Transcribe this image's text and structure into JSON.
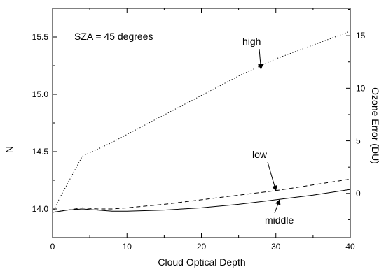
{
  "chart_data": {
    "type": "line",
    "annotation": "SZA = 45 degrees",
    "xlabel": "Cloud Optical Depth",
    "ylabel": "N",
    "y2label": "Ozone Error (DU)",
    "xlim": [
      0,
      40
    ],
    "ylim": [
      13.75,
      15.75
    ],
    "y2lim": [
      -4.2,
      17.6
    ],
    "xticks": [
      0,
      10,
      20,
      30,
      40
    ],
    "yticks": [
      14.0,
      14.5,
      15.0,
      15.5
    ],
    "yticklabels": [
      "14.0",
      "14.5",
      "15.0",
      "15.5"
    ],
    "y2ticks": [
      0,
      5,
      10,
      15
    ],
    "y2ticklabels": [
      "0",
      "5",
      "10",
      "15"
    ],
    "grid": false,
    "series": [
      {
        "name": "high",
        "style": "dotted",
        "x": [
          0,
          1,
          2,
          3,
          4,
          6,
          8,
          10,
          15,
          20,
          25,
          30,
          35,
          40
        ],
        "y": [
          13.97,
          14.1,
          14.22,
          14.34,
          14.46,
          14.52,
          14.58,
          14.65,
          14.82,
          14.99,
          15.16,
          15.31,
          15.43,
          15.55
        ]
      },
      {
        "name": "low",
        "style": "dashed",
        "x": [
          0,
          2,
          4,
          6,
          8,
          10,
          15,
          20,
          25,
          30,
          35,
          40
        ],
        "y": [
          13.97,
          13.99,
          14.01,
          14.0,
          14.0,
          14.01,
          14.04,
          14.08,
          14.12,
          14.16,
          14.21,
          14.26
        ]
      },
      {
        "name": "middle",
        "style": "solid",
        "x": [
          0,
          2,
          4,
          6,
          8,
          10,
          15,
          20,
          25,
          30,
          35,
          40
        ],
        "y": [
          13.97,
          13.99,
          14.0,
          13.99,
          13.98,
          13.98,
          13.99,
          14.01,
          14.04,
          14.08,
          14.12,
          14.17
        ]
      }
    ],
    "labels": [
      {
        "text": "high",
        "series": "high"
      },
      {
        "text": "low",
        "series": "low"
      },
      {
        "text": "middle",
        "series": "middle"
      }
    ]
  }
}
